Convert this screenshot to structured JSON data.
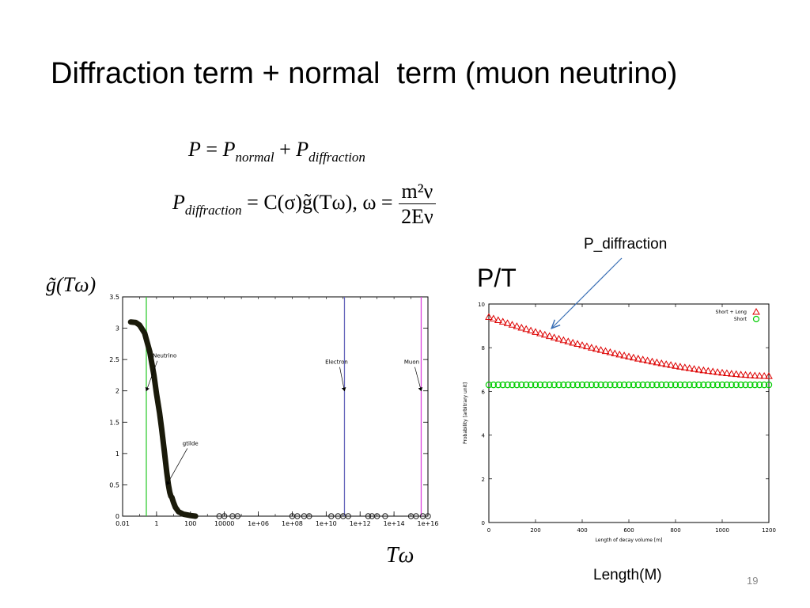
{
  "slide": {
    "title": "Diffraction term + normal  term (muon neutrino)",
    "page_number": "19",
    "p_diffraction_label": "P_diffraction",
    "pt_label": "P/T",
    "length_label": "Length(M)",
    "equation1": {
      "lhs": "P",
      "normal_sub": "normal",
      "diffraction_sub": "diffraction"
    },
    "equation2": {
      "lhs_sub": "diffraction",
      "body": "= C(σ)g̃(Tω), ω =",
      "numerator": "m²ν",
      "denominator": "2Eν"
    },
    "left_ylabel": "g̃(Tω)",
    "left_xlabel": "Tω"
  },
  "chart_data": [
    {
      "type": "line",
      "xscale": "log",
      "xlim": [
        0.01,
        1e+16
      ],
      "ylim": [
        0,
        3.5
      ],
      "x_tick_labels": [
        "0.01",
        "1",
        "100",
        "10000",
        "1e+06",
        "1e+08",
        "1e+10",
        "1e+12",
        "1e+14",
        "1e+16"
      ],
      "y_tick_labels": [
        "0",
        "0.5",
        "1",
        "1.5",
        "2",
        "2.5",
        "3",
        "3.5"
      ],
      "y_ticks": [
        0,
        0.5,
        1,
        1.5,
        2,
        2.5,
        3,
        3.5
      ],
      "curve": {
        "x": [
          0.03,
          0.06,
          0.1,
          0.2,
          0.4,
          0.7,
          1,
          1.5,
          2,
          3,
          4,
          5,
          6,
          7,
          8,
          10,
          13,
          20,
          40,
          100,
          200
        ],
        "y": [
          3.1,
          3.09,
          3.05,
          2.92,
          2.62,
          2.25,
          1.95,
          1.65,
          1.4,
          1.0,
          0.7,
          0.5,
          0.38,
          0.32,
          0.3,
          0.22,
          0.14,
          0.07,
          0.03,
          0.01,
          0.0
        ]
      },
      "zero_markers_x": [
        5000,
        10000,
        30000,
        60000,
        100000000.0,
        200000000.0,
        500000000.0,
        1000000000.0,
        20000000000.0,
        50000000000.0,
        100000000000.0,
        200000000000.0,
        3000000000000.0,
        5000000000000.0,
        10000000000000.0,
        30000000000000.0,
        1000000000000000.0,
        2000000000000000.0,
        5000000000000000.0,
        1e+16
      ],
      "vertical_lines": [
        {
          "name": "neutrino",
          "x": 0.25,
          "color": "#33cc33"
        },
        {
          "name": "electron",
          "x": 120000000000.0,
          "color": "#6666bb"
        },
        {
          "name": "muon",
          "x": 4000000000000000.0,
          "color": "#dd44dd"
        }
      ],
      "annotations": [
        {
          "text": "Neutrino",
          "x": 0.25,
          "y": 2.0
        },
        {
          "text": "gtilde",
          "x": 4,
          "y": 0.5
        },
        {
          "text": "Electron",
          "x": 120000000000.0,
          "y": 2.0
        },
        {
          "text": "Muon",
          "x": 4000000000000000.0,
          "y": 2.0
        }
      ]
    },
    {
      "type": "scatter",
      "xlabel": "Length of decay volume [m]",
      "ylabel": "Probability [arbitrary unit]",
      "xlim": [
        0,
        1200
      ],
      "ylim": [
        0,
        10
      ],
      "x_ticks": [
        0,
        200,
        400,
        600,
        800,
        1000,
        1200
      ],
      "y_ticks": [
        0,
        2,
        4,
        6,
        8,
        10
      ],
      "series": [
        {
          "name": "Short + Long",
          "marker": "triangle",
          "color": "#dd0000",
          "y_start": 9.4,
          "y_end": 6.7
        },
        {
          "name": "Short",
          "marker": "circle",
          "color": "#00cc00",
          "y_const": 6.3
        }
      ],
      "x_points": {
        "start": 0,
        "step": 20,
        "count": 61
      }
    }
  ]
}
